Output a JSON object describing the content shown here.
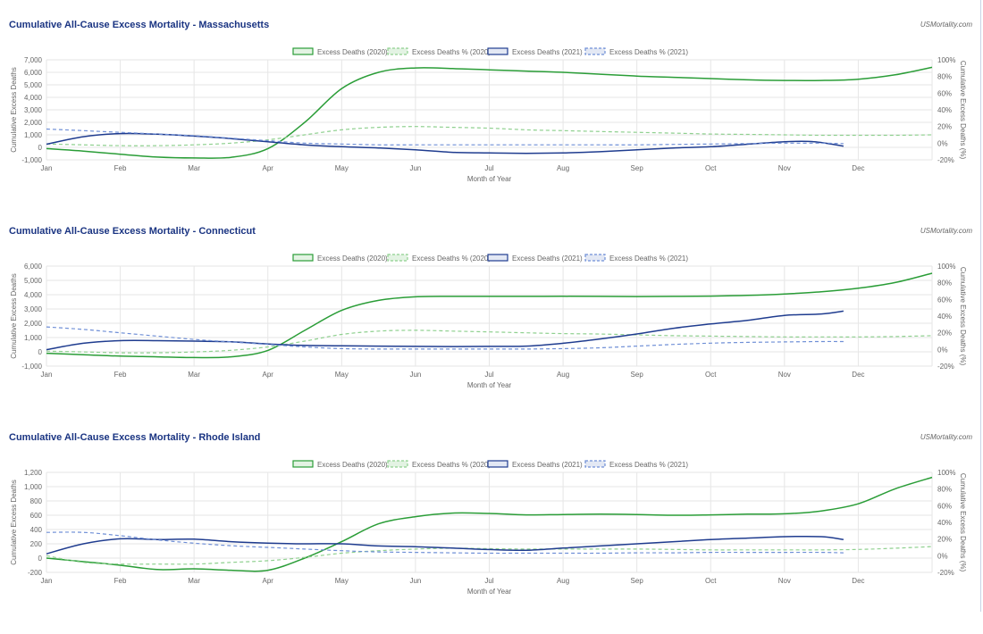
{
  "colors": {
    "title": "#1a3482",
    "green": "#2a9d37",
    "green_light": "#8fd08f",
    "navy": "#1f3c8f",
    "blue_light": "#6f8fd6",
    "grid": "#e6e6e6"
  },
  "source_label": "USMortality.com",
  "chart_data": [
    {
      "type": "line",
      "title": "Cumulative All-Cause Excess Mortality - Massachusetts",
      "xlabel": "Month of Year",
      "ylabel": "Cumulative Excess Deaths",
      "y2label": "Cumulative Excess Deaths (%)",
      "x_ticks": [
        "Jan",
        "Feb",
        "Mar",
        "Apr",
        "May",
        "Jun",
        "Jul",
        "Aug",
        "Sep",
        "Oct",
        "Nov",
        "Dec"
      ],
      "y_ticks": [
        -1000,
        0,
        1000,
        2000,
        3000,
        4000,
        5000,
        6000,
        7000
      ],
      "y_tick_labels": [
        "-1,000",
        "0",
        "1,000",
        "2,000",
        "3,000",
        "4,000",
        "5,000",
        "6,000",
        "7,000"
      ],
      "ylim": [
        -1000,
        7000
      ],
      "y2_ticks": [
        -20,
        0,
        20,
        40,
        60,
        80,
        100
      ],
      "y2_tick_labels": [
        "-20%",
        "0%",
        "20%",
        "40%",
        "60%",
        "80%",
        "100%"
      ],
      "y2lim": [
        -20,
        100
      ],
      "legend": "top",
      "series": [
        {
          "name": "Excess Deaths (2020)",
          "axis": "left",
          "style": "solid",
          "color": "green",
          "x": [
            1,
            1.5,
            2,
            2.5,
            3,
            3.5,
            4,
            4.5,
            5,
            5.5,
            6,
            6.5,
            7,
            7.5,
            8,
            8.5,
            9,
            9.5,
            10,
            10.5,
            11,
            11.5,
            12,
            12.5,
            13
          ],
          "y": [
            -100,
            -300,
            -550,
            -780,
            -850,
            -800,
            -100,
            2000,
            4700,
            6000,
            6350,
            6300,
            6200,
            6100,
            6000,
            5850,
            5700,
            5600,
            5500,
            5400,
            5350,
            5350,
            5450,
            5800,
            6400
          ]
        },
        {
          "name": "Excess Deaths % (2020)",
          "axis": "right",
          "style": "dashed",
          "color": "green_light",
          "x": [
            1,
            1.5,
            2,
            2.5,
            3,
            3.5,
            4,
            4.5,
            5,
            5.5,
            6,
            6.5,
            7,
            7.5,
            8,
            8.5,
            9,
            9.5,
            10,
            10.5,
            11,
            11.5,
            12,
            12.5,
            13
          ],
          "y": [
            -1,
            -2,
            -3,
            -3,
            -2,
            0,
            4,
            10,
            16,
            19,
            20,
            19,
            18,
            16,
            15,
            14,
            13,
            12,
            11,
            10.5,
            10,
            9.5,
            9.5,
            9.5,
            10
          ]
        },
        {
          "name": "Excess Deaths (2021)",
          "axis": "left",
          "style": "solid",
          "color": "navy",
          "x": [
            1,
            1.5,
            2,
            2.5,
            3,
            3.5,
            4,
            4.5,
            5,
            5.5,
            6,
            6.5,
            7,
            7.5,
            8,
            8.5,
            9,
            9.5,
            10,
            10.5,
            11,
            11.4,
            11.8
          ],
          "y": [
            250,
            850,
            1100,
            1050,
            900,
            700,
            450,
            200,
            50,
            -50,
            -200,
            -400,
            -450,
            -480,
            -450,
            -350,
            -200,
            -50,
            50,
            250,
            450,
            450,
            100
          ]
        },
        {
          "name": "Excess Deaths % (2021)",
          "axis": "right",
          "style": "dashed",
          "color": "blue_light",
          "x": [
            1,
            1.5,
            2,
            2.5,
            3,
            3.5,
            4,
            4.5,
            5,
            5.5,
            6,
            6.5,
            7,
            7.5,
            8,
            8.5,
            9,
            9.5,
            10,
            10.5,
            11,
            11.5,
            11.8
          ],
          "y": [
            17,
            15,
            13,
            11,
            9,
            6,
            3,
            0,
            -1,
            -2,
            -2,
            -2,
            -2,
            -2,
            -2,
            -2,
            -2,
            -1.5,
            -1,
            -0.5,
            0,
            0,
            -0.5
          ]
        }
      ]
    },
    {
      "type": "line",
      "title": "Cumulative All-Cause Excess Mortality - Connecticut",
      "xlabel": "Month of Year",
      "ylabel": "Cumulative Excess Deaths",
      "y2label": "Cumulative Excess Deaths (%)",
      "x_ticks": [
        "Jan",
        "Feb",
        "Mar",
        "Apr",
        "May",
        "Jun",
        "Jul",
        "Aug",
        "Sep",
        "Oct",
        "Nov",
        "Dec"
      ],
      "y_ticks": [
        -1000,
        0,
        1000,
        2000,
        3000,
        4000,
        5000,
        6000
      ],
      "y_tick_labels": [
        "-1,000",
        "0",
        "1,000",
        "2,000",
        "3,000",
        "4,000",
        "5,000",
        "6,000"
      ],
      "ylim": [
        -1000,
        6000
      ],
      "y2_ticks": [
        -20,
        0,
        20,
        40,
        60,
        80,
        100
      ],
      "y2_tick_labels": [
        "-20%",
        "0%",
        "20%",
        "40%",
        "60%",
        "80%",
        "100%"
      ],
      "y2lim": [
        -20,
        100
      ],
      "legend": "top",
      "series": [
        {
          "name": "Excess Deaths (2020)",
          "axis": "left",
          "style": "solid",
          "color": "green",
          "x": [
            1,
            1.5,
            2,
            2.5,
            3,
            3.5,
            4,
            4.5,
            5,
            5.5,
            6,
            6.5,
            7,
            7.5,
            8,
            8.5,
            9,
            9.5,
            10,
            10.5,
            11,
            11.5,
            12,
            12.5,
            13
          ],
          "y": [
            -100,
            -200,
            -300,
            -350,
            -400,
            -350,
            100,
            1500,
            2900,
            3600,
            3850,
            3880,
            3880,
            3880,
            3890,
            3880,
            3870,
            3880,
            3900,
            3950,
            4050,
            4200,
            4450,
            4850,
            5500
          ]
        },
        {
          "name": "Excess Deaths % (2020)",
          "axis": "right",
          "style": "dashed",
          "color": "green_light",
          "x": [
            1,
            1.5,
            2,
            2.5,
            3,
            3.5,
            4,
            4.5,
            5,
            5.5,
            6,
            6.5,
            7,
            7.5,
            8,
            8.5,
            9,
            9.5,
            10,
            10.5,
            11,
            11.5,
            12,
            12.5,
            13
          ],
          "y": [
            -2,
            -3,
            -4,
            -4,
            -3,
            -1,
            3,
            10,
            18,
            22,
            23,
            22,
            21,
            20,
            19,
            18.5,
            17.5,
            16.5,
            16,
            15.5,
            15,
            15,
            15,
            15.5,
            16.5
          ]
        },
        {
          "name": "Excess Deaths (2021)",
          "axis": "left",
          "style": "solid",
          "color": "navy",
          "x": [
            1,
            1.5,
            2,
            2.5,
            3,
            3.5,
            4,
            4.5,
            5,
            5.5,
            6,
            6.5,
            7,
            7.5,
            8,
            8.5,
            9,
            9.5,
            10,
            10.5,
            11,
            11.5,
            11.8
          ],
          "y": [
            150,
            600,
            780,
            780,
            750,
            700,
            550,
            450,
            420,
            400,
            380,
            370,
            380,
            400,
            600,
            900,
            1250,
            1650,
            1950,
            2200,
            2550,
            2650,
            2850
          ]
        },
        {
          "name": "Excess Deaths % (2021)",
          "axis": "right",
          "style": "dashed",
          "color": "blue_light",
          "x": [
            1,
            1.5,
            2,
            2.5,
            3,
            3.5,
            4,
            4.5,
            5,
            5.5,
            6,
            6.5,
            7,
            7.5,
            8,
            8.5,
            9,
            9.5,
            10,
            10.5,
            11,
            11.5,
            11.8
          ],
          "y": [
            27,
            24,
            20,
            16,
            12,
            9,
            6,
            3,
            1,
            0.5,
            0.5,
            0.5,
            0.5,
            0.5,
            1,
            2,
            4,
            6,
            7.5,
            8.5,
            9,
            9.5,
            9.5
          ]
        }
      ]
    },
    {
      "type": "line",
      "title": "Cumulative All-Cause Excess Mortality - Rhode Island",
      "xlabel": "Month of Year",
      "ylabel": "Cumulative Excess Deaths",
      "y2label": "Cumulative Excess Deaths (%)",
      "x_ticks": [
        "Jan",
        "Feb",
        "Mar",
        "Apr",
        "May",
        "Jun",
        "Jul",
        "Aug",
        "Sep",
        "Oct",
        "Nov",
        "Dec"
      ],
      "y_ticks": [
        -200,
        0,
        200,
        400,
        600,
        800,
        1000,
        1200
      ],
      "y_tick_labels": [
        "-200",
        "0",
        "200",
        "400",
        "600",
        "800",
        "1,000",
        "1,200"
      ],
      "ylim": [
        -200,
        1200
      ],
      "y2_ticks": [
        -20,
        0,
        20,
        40,
        60,
        80,
        100
      ],
      "y2_tick_labels": [
        "-20%",
        "0%",
        "20%",
        "40%",
        "60%",
        "80%",
        "100%"
      ],
      "y2lim": [
        -20,
        100
      ],
      "legend": "top",
      "series": [
        {
          "name": "Excess Deaths (2020)",
          "axis": "left",
          "style": "solid",
          "color": "green",
          "x": [
            1,
            1.5,
            2,
            2.5,
            3,
            3.5,
            4,
            4.5,
            5,
            5.5,
            6,
            6.5,
            7,
            7.5,
            8,
            8.5,
            9,
            9.5,
            10,
            10.5,
            11,
            11.5,
            12,
            12.5,
            13
          ],
          "y": [
            0,
            -50,
            -100,
            -160,
            -150,
            -170,
            -170,
            0,
            230,
            480,
            580,
            630,
            625,
            605,
            610,
            615,
            610,
            600,
            605,
            615,
            620,
            660,
            760,
            970,
            1130
          ]
        },
        {
          "name": "Excess Deaths % (2020)",
          "axis": "right",
          "style": "dashed",
          "color": "green_light",
          "x": [
            1,
            1.5,
            2,
            2.5,
            3,
            3.5,
            4,
            4.5,
            5,
            5.5,
            6,
            6.5,
            7,
            7.5,
            8,
            8.5,
            9,
            9.5,
            10,
            10.5,
            11,
            11.5,
            12,
            12.5,
            13
          ],
          "y": [
            0,
            -8,
            -10,
            -10,
            -10,
            -8,
            -6,
            -2,
            3,
            6,
            8,
            9,
            8.5,
            8,
            8,
            8,
            8,
            7.5,
            7,
            7,
            7,
            7,
            7.5,
            9,
            11
          ]
        },
        {
          "name": "Excess Deaths (2021)",
          "axis": "left",
          "style": "solid",
          "color": "navy",
          "x": [
            1,
            1.5,
            2,
            2.5,
            3,
            3.5,
            4,
            4.5,
            5,
            5.5,
            6,
            6.5,
            7,
            7.5,
            8,
            8.5,
            9,
            9.5,
            10,
            10.5,
            11,
            11.5,
            11.8
          ],
          "y": [
            60,
            200,
            270,
            260,
            265,
            230,
            210,
            200,
            200,
            170,
            160,
            140,
            120,
            110,
            140,
            170,
            200,
            230,
            260,
            280,
            300,
            300,
            260
          ]
        },
        {
          "name": "Excess Deaths % (2021)",
          "axis": "right",
          "style": "dashed",
          "color": "blue_light",
          "x": [
            1,
            1.5,
            2,
            2.5,
            3,
            3.5,
            4,
            4.5,
            5,
            5.5,
            6,
            6.5,
            7,
            7.5,
            8,
            8.5,
            9,
            9.5,
            10,
            10.5,
            11,
            11.5,
            11.8
          ],
          "y": [
            28,
            28,
            24,
            19,
            15,
            12,
            10,
            8,
            6,
            4.5,
            4,
            3.5,
            3,
            3,
            3,
            3,
            3.5,
            3.5,
            4,
            4,
            4,
            4,
            3.5
          ]
        }
      ]
    }
  ]
}
